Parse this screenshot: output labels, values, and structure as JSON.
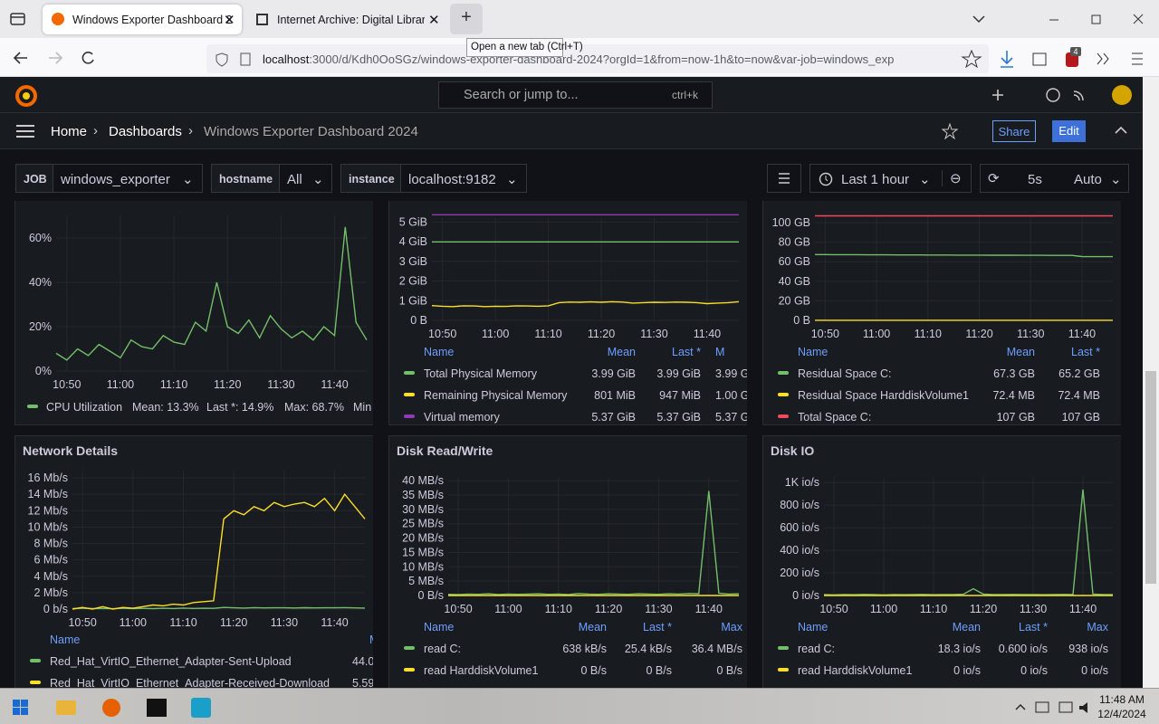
{
  "browser": {
    "tabs": [
      {
        "title": "Windows Exporter Dashboard 2"
      },
      {
        "title": "Internet Archive: Digital Library"
      }
    ],
    "tooltip": "Open a new tab (Ctrl+T)",
    "url_host": "localhost",
    "url_path": ":3000/d/Kdh0OoSGz/windows-exporter-dashboard-2024?orgId=1&from=now-1h&to=now&var-job=windows_exp",
    "badge": "4"
  },
  "grafana": {
    "search": "Search or jump to...",
    "shortcut": "ctrl+k",
    "breadcrumb": [
      "Home",
      "Dashboards",
      "Windows Exporter Dashboard 2024"
    ],
    "share": "Share",
    "edit": "Edit",
    "variables": [
      {
        "label": "JOB",
        "value": "windows_exporter"
      },
      {
        "label": "hostname",
        "value": "All"
      },
      {
        "label": "instance",
        "value": "localhost:9182"
      }
    ],
    "time_range": "Last 1 hour",
    "refresh": "5s",
    "refresh_mode": "Auto"
  },
  "panels": [
    {
      "type": "line",
      "ylim": [
        0,
        70
      ],
      "yticks": [
        {
          "value": 0,
          "label": "0%"
        },
        {
          "value": 20,
          "label": "20%"
        },
        {
          "value": 40,
          "label": "40%"
        },
        {
          "value": 60,
          "label": "60%"
        }
      ],
      "xlim": [
        0,
        29
      ],
      "xticks": [
        {
          "value": 1,
          "label": "10:50"
        },
        {
          "value": 6,
          "label": "11:00"
        },
        {
          "value": 11,
          "label": "11:10"
        },
        {
          "value": 16,
          "label": "11:20"
        },
        {
          "value": 21,
          "label": "11:30"
        },
        {
          "value": 26,
          "label": "11:40"
        }
      ],
      "series": [
        {
          "name": "CPU Utilization",
          "color": "#73bf69",
          "values": [
            8,
            5,
            10,
            7,
            12,
            9,
            6,
            14,
            11,
            10,
            16,
            13,
            12,
            22,
            18,
            40,
            20,
            17,
            23,
            15,
            25,
            19,
            15,
            18,
            14,
            20,
            16,
            65,
            22,
            14
          ],
          "stats": [
            "Mean: 13.3%",
            "Last *: 14.9%",
            "Max: 68.7%",
            "Min"
          ]
        }
      ]
    },
    {
      "type": "line",
      "ylim": [
        0,
        5.2
      ],
      "yticks": [
        {
          "value": 0,
          "label": "0 B"
        },
        {
          "value": 1,
          "label": "1 GiB"
        },
        {
          "value": 2,
          "label": "2 GiB"
        },
        {
          "value": 3,
          "label": "3 GiB"
        },
        {
          "value": 4,
          "label": "4 GiB"
        },
        {
          "value": 5,
          "label": "5 GiB"
        }
      ],
      "xlim": [
        0,
        29
      ],
      "xticks": [
        {
          "value": 1,
          "label": "10:50"
        },
        {
          "value": 6,
          "label": "11:00"
        },
        {
          "value": 11,
          "label": "11:10"
        },
        {
          "value": 16,
          "label": "11:20"
        },
        {
          "value": 21,
          "label": "11:30"
        },
        {
          "value": 26,
          "label": "11:40"
        }
      ],
      "columns": [
        "Name",
        "Mean",
        "Last *",
        "M"
      ],
      "series": [
        {
          "name": "Total Physical Memory",
          "color": "#73bf69",
          "values": [
            3.99,
            3.99,
            3.99,
            3.99,
            3.99,
            3.99,
            3.99,
            3.99,
            3.99,
            3.99,
            3.99,
            3.99,
            3.99,
            3.99,
            3.99,
            3.99,
            3.99,
            3.99,
            3.99,
            3.99,
            3.99,
            3.99,
            3.99,
            3.99,
            3.99,
            3.99,
            3.99,
            3.99,
            3.99,
            3.99
          ],
          "stats": [
            "3.99 GiB",
            "3.99 GiB",
            "3.99 G"
          ]
        },
        {
          "name": "Remaining Physical Memory",
          "color": "#fade2a",
          "values": [
            0.75,
            0.72,
            0.7,
            0.74,
            0.73,
            0.7,
            0.72,
            0.71,
            0.74,
            0.73,
            0.72,
            0.74,
            0.9,
            0.93,
            0.92,
            0.94,
            0.92,
            0.95,
            0.93,
            0.88,
            0.9,
            0.92,
            0.91,
            0.93,
            0.92,
            0.9,
            0.85,
            0.88,
            0.9,
            0.95
          ],
          "stats": [
            "801 MiB",
            "947 MiB",
            "1.00 G"
          ]
        },
        {
          "name": "Virtual memory",
          "color": "#8f3bb8",
          "values": [
            5.37,
            5.37,
            5.37,
            5.37,
            5.37,
            5.37,
            5.37,
            5.37,
            5.37,
            5.37,
            5.37,
            5.37,
            5.37,
            5.37,
            5.37,
            5.37,
            5.37,
            5.37,
            5.37,
            5.37,
            5.37,
            5.37,
            5.37,
            5.37,
            5.37,
            5.37,
            5.37,
            5.37,
            5.37,
            5.37
          ],
          "stats": [
            "5.37 GiB",
            "5.37 GiB",
            "5.37 G"
          ]
        }
      ]
    },
    {
      "type": "line",
      "ylim": [
        0,
        108
      ],
      "yticks": [
        {
          "value": 0,
          "label": "0 B"
        },
        {
          "value": 20,
          "label": "20 GB"
        },
        {
          "value": 40,
          "label": "40 GB"
        },
        {
          "value": 60,
          "label": "60 GB"
        },
        {
          "value": 80,
          "label": "80 GB"
        },
        {
          "value": 100,
          "label": "100 GB"
        }
      ],
      "xlim": [
        0,
        29
      ],
      "xticks": [
        {
          "value": 1,
          "label": "10:50"
        },
        {
          "value": 6,
          "label": "11:00"
        },
        {
          "value": 11,
          "label": "11:10"
        },
        {
          "value": 16,
          "label": "11:20"
        },
        {
          "value": 21,
          "label": "11:30"
        },
        {
          "value": 26,
          "label": "11:40"
        }
      ],
      "columns": [
        "Name",
        "Mean",
        "Last *"
      ],
      "series": [
        {
          "name": "Residual Space C:",
          "color": "#73bf69",
          "values": [
            67.3,
            67.3,
            67.2,
            67.2,
            67.2,
            67.1,
            67.1,
            67.1,
            67.0,
            67.0,
            67.0,
            66.9,
            66.9,
            66.9,
            66.8,
            66.8,
            66.8,
            66.7,
            66.7,
            66.7,
            66.6,
            66.6,
            66.6,
            66.5,
            66.5,
            66.5,
            65.3,
            65.2,
            65.2,
            65.2
          ],
          "stats": [
            "67.3 GB",
            "65.2 GB"
          ]
        },
        {
          "name": "Residual Space HarddiskVolume1",
          "color": "#fade2a",
          "values": [
            0.0724,
            0.0724,
            0.0724,
            0.0724,
            0.0724,
            0.0724,
            0.0724,
            0.0724,
            0.0724,
            0.0724,
            0.0724,
            0.0724,
            0.0724,
            0.0724,
            0.0724,
            0.0724,
            0.0724,
            0.0724,
            0.0724,
            0.0724,
            0.0724,
            0.0724,
            0.0724,
            0.0724,
            0.0724,
            0.0724,
            0.0724,
            0.0724,
            0.0724,
            0.0724
          ],
          "stats": [
            "72.4 MB",
            "72.4 MB"
          ]
        },
        {
          "name": "Total Space C:",
          "color": "#f2495c",
          "values": [
            107,
            107,
            107,
            107,
            107,
            107,
            107,
            107,
            107,
            107,
            107,
            107,
            107,
            107,
            107,
            107,
            107,
            107,
            107,
            107,
            107,
            107,
            107,
            107,
            107,
            107,
            107,
            107,
            107,
            107
          ],
          "stats": [
            "107 GB",
            "107 GB"
          ]
        }
      ]
    },
    {
      "type": "line",
      "title": "Network Details",
      "ylim": [
        0,
        17
      ],
      "yticks": [
        {
          "value": 0,
          "label": "0 b/s"
        },
        {
          "value": 2,
          "label": "2 Mb/s"
        },
        {
          "value": 4,
          "label": "4 Mb/s"
        },
        {
          "value": 6,
          "label": "6 Mb/s"
        },
        {
          "value": 8,
          "label": "8 Mb/s"
        },
        {
          "value": 10,
          "label": "10 Mb/s"
        },
        {
          "value": 12,
          "label": "12 Mb/s"
        },
        {
          "value": 14,
          "label": "14 Mb/s"
        },
        {
          "value": 16,
          "label": "16 Mb/s"
        }
      ],
      "xlim": [
        0,
        29
      ],
      "xticks": [
        {
          "value": 1,
          "label": "10:50"
        },
        {
          "value": 6,
          "label": "11:00"
        },
        {
          "value": 11,
          "label": "11:10"
        },
        {
          "value": 16,
          "label": "11:20"
        },
        {
          "value": 21,
          "label": "11:30"
        },
        {
          "value": 26,
          "label": "11:40"
        }
      ],
      "columns": [
        "Name",
        "M"
      ],
      "series": [
        {
          "name": "Red_Hat_VirtIO_Ethernet_Adapter-Sent-Upload",
          "color": "#73bf69",
          "values": [
            0.05,
            0.1,
            0.05,
            0.08,
            0.04,
            0.1,
            0.06,
            0.09,
            0.05,
            0.1,
            0.07,
            0.12,
            0.08,
            0.1,
            0.09,
            0.2,
            0.15,
            0.12,
            0.18,
            0.14,
            0.16,
            0.15,
            0.13,
            0.17,
            0.14,
            0.16,
            0.15,
            0.18,
            0.14,
            0.12
          ],
          "stats": [
            "44.0"
          ]
        },
        {
          "name": "Red_Hat_VirtIO_Ethernet_Adapter-Received-Download",
          "color": "#fade2a",
          "values": [
            0,
            0.2,
            0,
            0.3,
            0,
            0.2,
            0.1,
            0.3,
            0.5,
            0.4,
            0.6,
            0.5,
            0.8,
            0.9,
            1.0,
            11,
            12,
            11.5,
            12.5,
            12,
            13,
            12.5,
            12.8,
            13,
            12.5,
            13.5,
            12,
            14,
            12.5,
            11
          ],
          "stats": [
            "5.59"
          ]
        }
      ]
    },
    {
      "type": "line",
      "title": "Disk Read/Write",
      "ylim": [
        0,
        41
      ],
      "yticks": [
        {
          "value": 0,
          "label": "0 B/s"
        },
        {
          "value": 5,
          "label": "5 MB/s"
        },
        {
          "value": 10,
          "label": "10 MB/s"
        },
        {
          "value": 15,
          "label": "15 MB/s"
        },
        {
          "value": 20,
          "label": "20 MB/s"
        },
        {
          "value": 25,
          "label": "25 MB/s"
        },
        {
          "value": 30,
          "label": "30 MB/s"
        },
        {
          "value": 35,
          "label": "35 MB/s"
        },
        {
          "value": 40,
          "label": "40 MB/s"
        }
      ],
      "xlim": [
        0,
        29
      ],
      "xticks": [
        {
          "value": 1,
          "label": "10:50"
        },
        {
          "value": 6,
          "label": "11:00"
        },
        {
          "value": 11,
          "label": "11:10"
        },
        {
          "value": 16,
          "label": "11:20"
        },
        {
          "value": 21,
          "label": "11:30"
        },
        {
          "value": 26,
          "label": "11:40"
        }
      ],
      "columns": [
        "Name",
        "Mean",
        "Last *",
        "Max"
      ],
      "series": [
        {
          "name": "read C:",
          "color": "#73bf69",
          "values": [
            0.4,
            0.3,
            0.5,
            0.4,
            0.6,
            0.3,
            0.5,
            0.4,
            0.5,
            0.6,
            0.4,
            0.5,
            0.3,
            0.7,
            0.5,
            0.4,
            0.6,
            0.5,
            0.4,
            0.6,
            0.5,
            0.4,
            0.6,
            0.5,
            0.7,
            0.6,
            36.4,
            0.8,
            0.5,
            0.6
          ],
          "stats": [
            "638 kB/s",
            "25.4 kB/s",
            "36.4 MB/s"
          ]
        },
        {
          "name": "read HarddiskVolume1",
          "color": "#fade2a",
          "values": [
            0,
            0,
            0,
            0,
            0,
            0,
            0,
            0,
            0,
            0,
            0,
            0,
            0,
            0,
            0,
            0,
            0,
            0,
            0,
            0,
            0,
            0,
            0,
            0,
            0,
            0,
            0,
            0,
            0,
            0
          ],
          "stats": [
            "0 B/s",
            "0 B/s",
            "0 B/s"
          ]
        }
      ]
    },
    {
      "type": "line",
      "title": "Disk IO",
      "ylim": [
        0,
        1050
      ],
      "yticks": [
        {
          "value": 0,
          "label": "0 io/s"
        },
        {
          "value": 200,
          "label": "200 io/s"
        },
        {
          "value": 400,
          "label": "400 io/s"
        },
        {
          "value": 600,
          "label": "600 io/s"
        },
        {
          "value": 800,
          "label": "800 io/s"
        },
        {
          "value": 1000,
          "label": "1K io/s"
        }
      ],
      "xlim": [
        0,
        29
      ],
      "xticks": [
        {
          "value": 1,
          "label": "10:50"
        },
        {
          "value": 6,
          "label": "11:00"
        },
        {
          "value": 11,
          "label": "11:10"
        },
        {
          "value": 16,
          "label": "11:20"
        },
        {
          "value": 21,
          "label": "11:30"
        },
        {
          "value": 26,
          "label": "11:40"
        }
      ],
      "columns": [
        "Name",
        "Mean",
        "Last *",
        "Max"
      ],
      "series": [
        {
          "name": "read C:",
          "color": "#73bf69",
          "values": [
            8,
            6,
            9,
            7,
            10,
            8,
            6,
            9,
            7,
            8,
            10,
            7,
            9,
            8,
            11,
            60,
            12,
            8,
            9,
            10,
            8,
            9,
            7,
            8,
            10,
            9,
            938,
            12,
            9,
            8
          ],
          "stats": [
            "18.3 io/s",
            "0.600 io/s",
            "938 io/s"
          ]
        },
        {
          "name": "read HarddiskVolume1",
          "color": "#fade2a",
          "values": [
            0,
            0,
            0,
            0,
            0,
            0,
            0,
            0,
            0,
            0,
            0,
            0,
            0,
            0,
            0,
            0,
            0,
            0,
            0,
            0,
            0,
            0,
            0,
            0,
            0,
            0,
            0,
            0,
            0,
            0
          ],
          "stats": [
            "0 io/s",
            "0 io/s",
            "0 io/s"
          ]
        }
      ]
    }
  ],
  "taskbar": {
    "time": "11:48 AM",
    "date": "12/4/2024"
  }
}
